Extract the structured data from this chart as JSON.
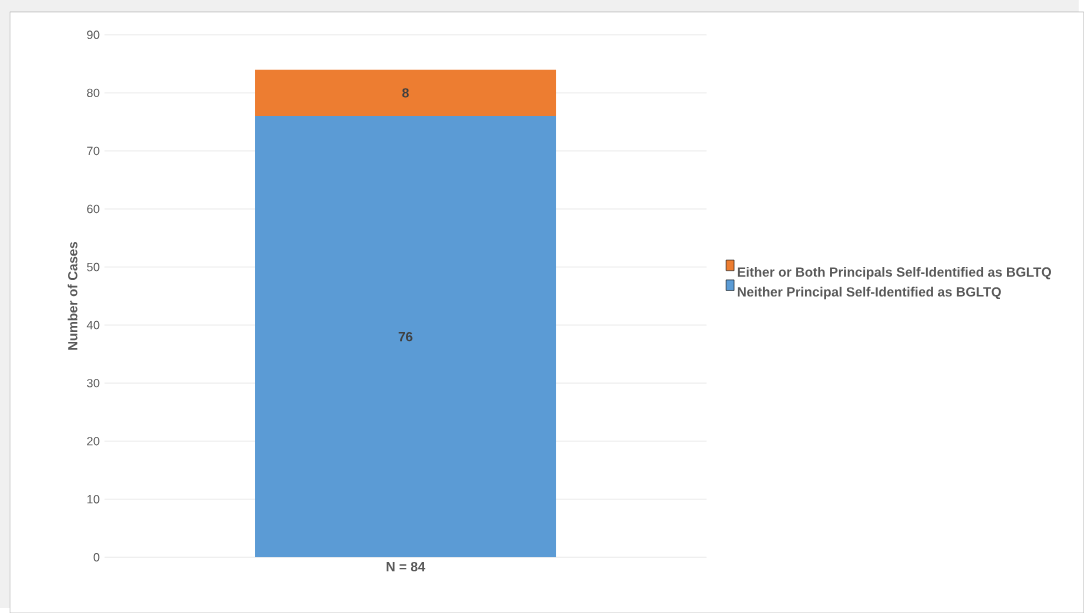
{
  "chart_data": {
    "type": "bar",
    "stacked": true,
    "categories": [
      "N = 84"
    ],
    "series": [
      {
        "name": "Neither Principal Self-Identified as BGLTQ",
        "color": "#5b9bd5",
        "values": [
          76
        ]
      },
      {
        "name": "Either or Both Principals Self-Identified as BGLTQ",
        "color": "#ed7d31",
        "values": [
          8
        ]
      }
    ],
    "ylabel": "Number of Cases",
    "ylim": [
      0,
      90
    ],
    "yticks": [
      0,
      10,
      20,
      30,
      40,
      50,
      60,
      70,
      80,
      90
    ],
    "grid": "y",
    "legend": "right",
    "data_labels": true
  }
}
